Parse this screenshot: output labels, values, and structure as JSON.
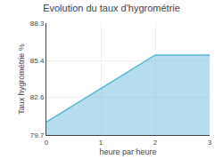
{
  "chart_data": {
    "type": "area",
    "title": "Evolution du taux d'hygrométrie",
    "xlabel": "heure par heure",
    "ylabel": "Taux hygrométrie %",
    "x": [
      0,
      2,
      3
    ],
    "values": [
      80.7,
      85.85,
      85.85
    ],
    "color": "#5ab4d6",
    "xlim": [
      0,
      3
    ],
    "xticks": [
      0,
      1,
      2,
      3
    ],
    "ylim": [
      79.7,
      88.3
    ],
    "yticks": [
      79.7,
      82.6,
      85.4,
      88.3
    ],
    "grid": true
  }
}
